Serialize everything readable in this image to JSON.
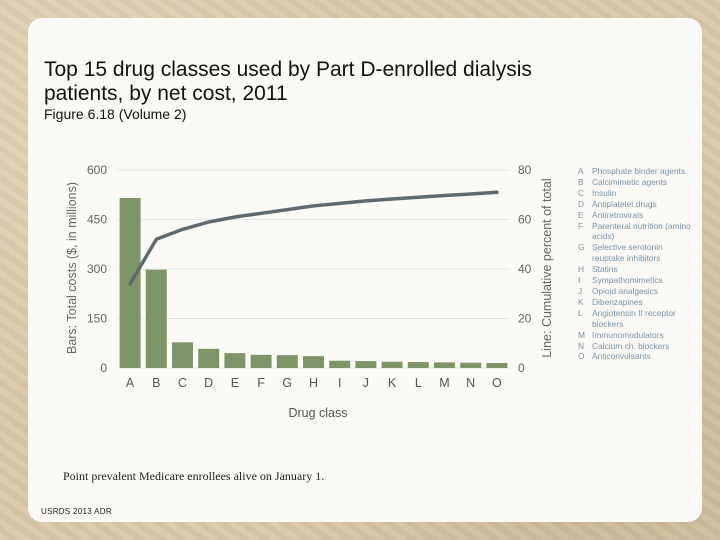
{
  "title": "Top 15 drug classes used by Part D-enrolled dialysis patients, by net cost, 2011",
  "subtitle": "Figure 6.18 (Volume 2)",
  "footnote": "Point prevalent Medicare enrollees alive on January 1.",
  "source": "USRDS 2013 ADR",
  "colors": {
    "bar": "#7f9467",
    "line": "#5f6b70",
    "axis_text": "#666666"
  },
  "chart_data": {
    "type": "bar",
    "xlabel": "Drug class",
    "ylabel_left": "Bars: Total costs ($, in millions)",
    "ylabel_right": "Line: Cumulative percent of total",
    "ylim_left": [
      0,
      600
    ],
    "ylim_right": [
      0,
      80
    ],
    "yticks_left": [
      "0",
      "150",
      "300",
      "450",
      "600"
    ],
    "yticks_right": [
      "0",
      "20",
      "40",
      "60",
      "80"
    ],
    "categories": [
      "A",
      "B",
      "C",
      "D",
      "E",
      "F",
      "G",
      "H",
      "I",
      "J",
      "K",
      "L",
      "M",
      "N",
      "O"
    ],
    "series": [
      {
        "name": "Total costs ($, in millions)",
        "axis": "left",
        "type": "bar",
        "values": [
          515,
          298,
          78,
          58,
          45,
          40,
          39,
          36,
          22,
          21,
          19,
          18,
          17,
          16,
          15
        ]
      },
      {
        "name": "Cumulative percent of total",
        "axis": "right",
        "type": "line",
        "values": [
          34,
          52,
          56,
          59,
          61,
          62.5,
          64,
          65.5,
          66.5,
          67.5,
          68.3,
          69,
          69.7,
          70.3,
          71
        ]
      }
    ],
    "legend": [
      {
        "key": "A",
        "label": "Phosphate binder agents"
      },
      {
        "key": "B",
        "label": "Calcimimetic agents"
      },
      {
        "key": "C",
        "label": "Insulin"
      },
      {
        "key": "D",
        "label": "Antiplatelet drugs"
      },
      {
        "key": "E",
        "label": "Antiretrovirals"
      },
      {
        "key": "F",
        "label": "Parenteral nutrition (amino acids)"
      },
      {
        "key": "G",
        "label": "Selective serotonin reuptake inhibitors"
      },
      {
        "key": "H",
        "label": "Statins"
      },
      {
        "key": "I",
        "label": "Sympathomimetics"
      },
      {
        "key": "J",
        "label": "Opioid analgesics"
      },
      {
        "key": "K",
        "label": "Dibenzapines"
      },
      {
        "key": "L",
        "label": "Angiotensin II receptor blockers"
      },
      {
        "key": "M",
        "label": "Immunomodulators"
      },
      {
        "key": "N",
        "label": "Calcium ch. blockers"
      },
      {
        "key": "O",
        "label": "Anticonvulsants"
      }
    ]
  }
}
